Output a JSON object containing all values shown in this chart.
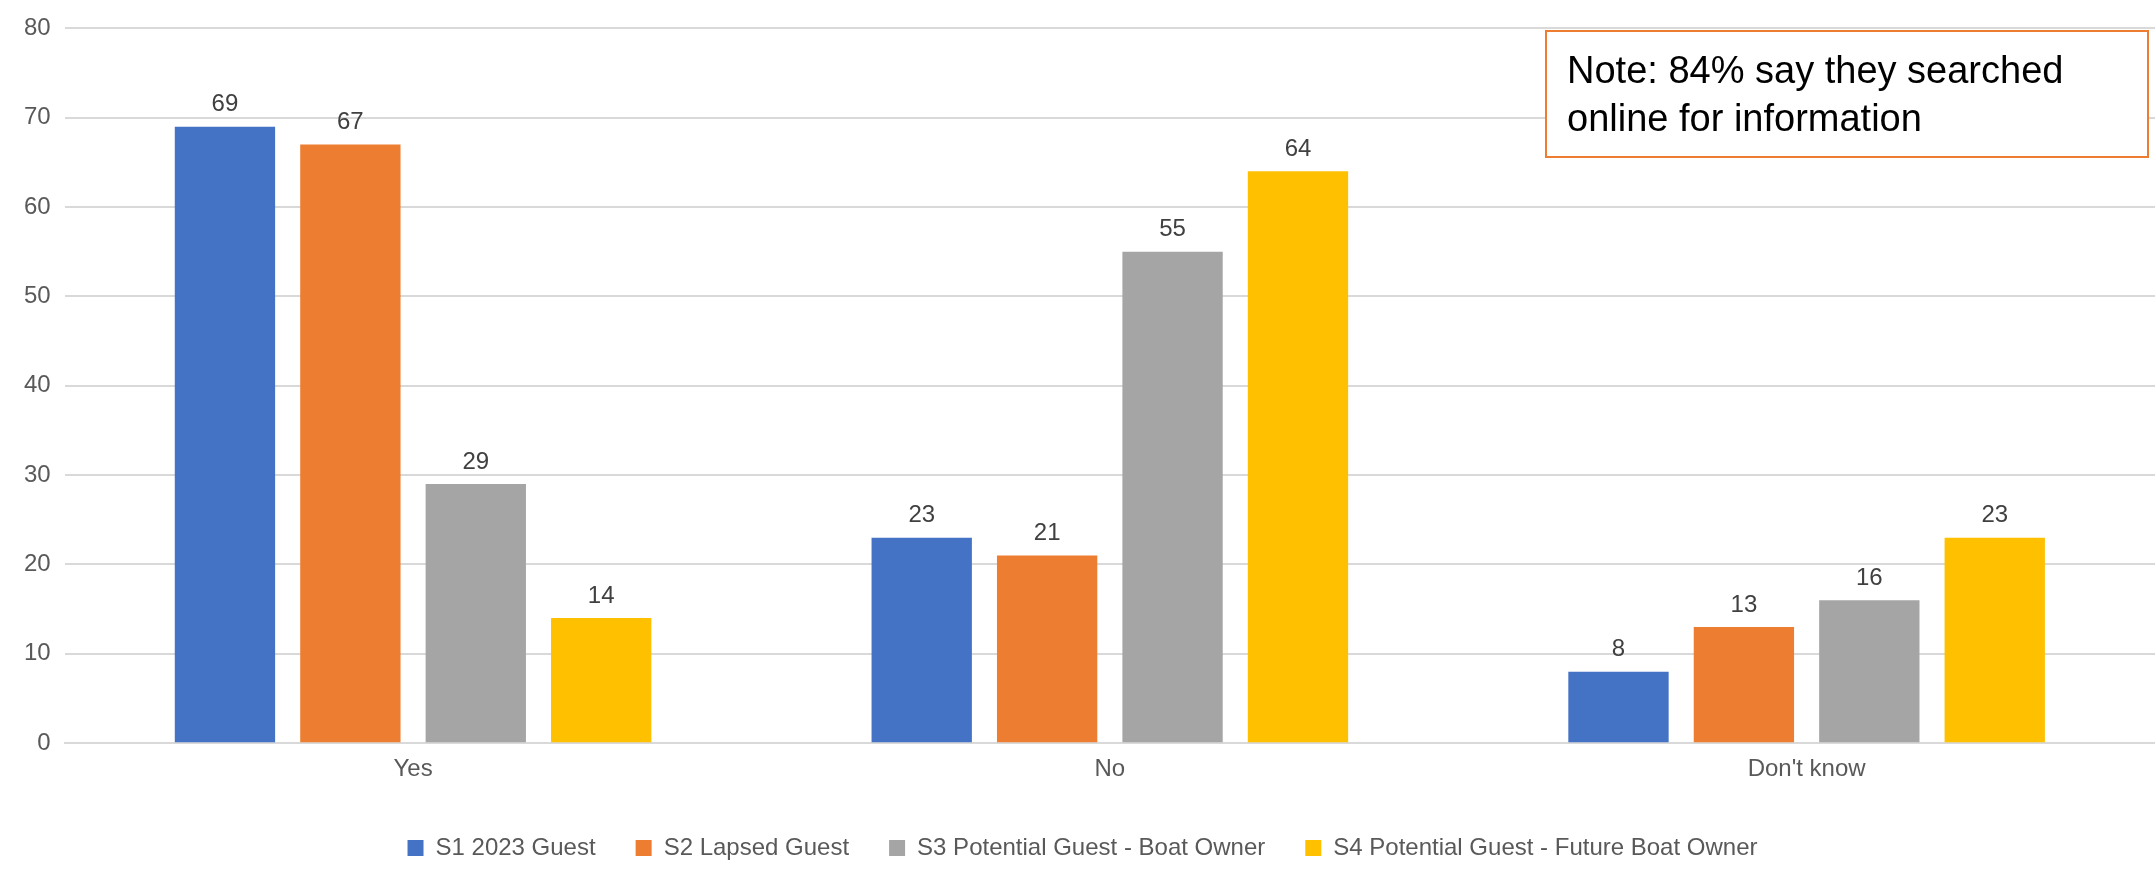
{
  "chart_data": {
    "type": "bar",
    "categories": [
      "Yes",
      "No",
      "Don't know"
    ],
    "series": [
      {
        "name": "S1 2023 Guest",
        "color": "#4472c4",
        "values": [
          69,
          23,
          8
        ]
      },
      {
        "name": "S2 Lapsed Guest",
        "color": "#ed7d31",
        "values": [
          67,
          21,
          13
        ]
      },
      {
        "name": "S3 Potential Guest - Boat Owner",
        "color": "#a5a5a5",
        "values": [
          29,
          55,
          16
        ]
      },
      {
        "name": "S4 Potential Guest - Future Boat Owner",
        "color": "#ffc000",
        "values": [
          14,
          64,
          23
        ]
      }
    ],
    "ylim": [
      0,
      80
    ],
    "yticks": [
      0,
      10,
      20,
      30,
      40,
      50,
      60,
      70,
      80
    ],
    "grid": "y",
    "legend": "bottom",
    "data_labels": true,
    "annotations": [
      "Note: 84% say they searched online for information"
    ]
  }
}
